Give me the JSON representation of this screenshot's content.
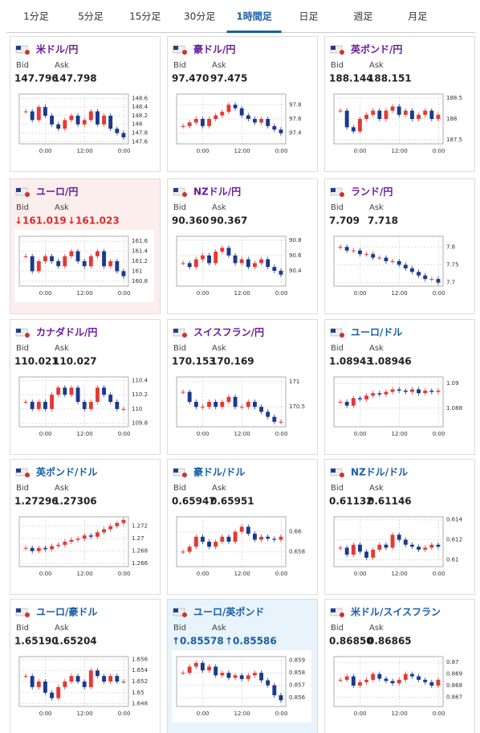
{
  "tabs": {
    "items": [
      "1分足",
      "5分足",
      "15分足",
      "30分足",
      "1時間足",
      "日足",
      "週足",
      "月足"
    ],
    "active": 4
  },
  "bid_label": "Bid",
  "ask_label": "Ask",
  "xticks": [
    "0:00",
    "12:00",
    "0:00"
  ],
  "cards": [
    {
      "title": "米ドル/円",
      "title_color": "#6a1b9a",
      "bid": "147.796",
      "ask": "147.798",
      "highlight": null,
      "ylim": [
        147.55,
        148.7
      ],
      "yticks": [
        147.6,
        147.8,
        148,
        148.2,
        148.4,
        148.6
      ],
      "closes": [
        148.3,
        148.1,
        148.4,
        148.2,
        148.0,
        147.9,
        148.1,
        148.2,
        148.0,
        148.1,
        148.3,
        148.0,
        148.2,
        147.9,
        147.8,
        147.7
      ]
    },
    {
      "title": "豪ドル/円",
      "title_color": "#6a1b9a",
      "bid": "97.470",
      "ask": "97.475",
      "highlight": null,
      "ylim": [
        97.25,
        97.95
      ],
      "yticks": [
        97.4,
        97.6,
        97.8
      ],
      "closes": [
        97.5,
        97.55,
        97.6,
        97.5,
        97.6,
        97.65,
        97.7,
        97.8,
        97.75,
        97.65,
        97.6,
        97.55,
        97.6,
        97.5,
        97.45,
        97.4
      ]
    },
    {
      "title": "英ポンド/円",
      "title_color": "#6a1b9a",
      "bid": "188.144",
      "ask": "188.151",
      "highlight": null,
      "ylim": [
        187.4,
        188.6
      ],
      "yticks": [
        187.5,
        188,
        188.5
      ],
      "closes": [
        188.2,
        187.8,
        187.7,
        188.0,
        188.1,
        188.2,
        188.0,
        188.2,
        188.3,
        188.1,
        188.2,
        188.0,
        188.1,
        188.2,
        188.0,
        188.1
      ]
    },
    {
      "title": "ユーロ/円",
      "title_color": "#6a1b9a",
      "bid": "↓161.019",
      "ask": "↓161.023",
      "highlight": "down",
      "ylim": [
        160.7,
        161.7
      ],
      "yticks": [
        160.8,
        161,
        161.2,
        161.4,
        161.6
      ],
      "closes": [
        161.3,
        161.0,
        161.2,
        161.3,
        161.2,
        161.1,
        161.3,
        161.4,
        161.2,
        161.1,
        161.3,
        161.4,
        161.1,
        161.2,
        161.0,
        160.9
      ]
    },
    {
      "title": "NZドル/円",
      "title_color": "#6a1b9a",
      "bid": "90.360",
      "ask": "90.367",
      "highlight": null,
      "ylim": [
        90.2,
        90.85
      ],
      "yticks": [
        90.4,
        90.6,
        90.8
      ],
      "closes": [
        90.5,
        90.45,
        90.55,
        90.6,
        90.5,
        90.65,
        90.7,
        90.6,
        90.5,
        90.55,
        90.45,
        90.5,
        90.55,
        90.45,
        90.4,
        90.35
      ]
    },
    {
      "title": "ランド/円",
      "title_color": "#6a1b9a",
      "bid": "7.709",
      "ask": "7.718",
      "highlight": null,
      "ylim": [
        7.69,
        7.83
      ],
      "yticks": [
        7.7,
        7.75,
        7.8
      ],
      "closes": [
        7.8,
        7.79,
        7.79,
        7.78,
        7.78,
        7.77,
        7.77,
        7.76,
        7.76,
        7.75,
        7.74,
        7.73,
        7.72,
        7.71,
        7.71,
        7.7
      ]
    },
    {
      "title": "カナダドル/円",
      "title_color": "#6a1b9a",
      "bid": "110.021",
      "ask": "110.027",
      "highlight": null,
      "ylim": [
        109.75,
        110.45
      ],
      "yticks": [
        109.8,
        110,
        110.2,
        110.4
      ],
      "closes": [
        110.1,
        110.0,
        110.1,
        110.0,
        110.2,
        110.3,
        110.2,
        110.3,
        110.1,
        110.0,
        110.1,
        110.3,
        110.2,
        110.1,
        110.0,
        110.0
      ]
    },
    {
      "title": "スイスフラン/円",
      "title_color": "#6a1b9a",
      "bid": "170.153",
      "ask": "170.169",
      "highlight": null,
      "ylim": [
        170.1,
        171.1
      ],
      "yticks": [
        170.5,
        171
      ],
      "closes": [
        170.8,
        170.6,
        170.5,
        170.5,
        170.6,
        170.5,
        170.6,
        170.7,
        170.5,
        170.5,
        170.6,
        170.5,
        170.4,
        170.3,
        170.2,
        170.2
      ]
    },
    {
      "title": "ユーロ/ドル",
      "title_color": "#1a5ea8",
      "bid": "1.08943",
      "ask": "1.08946",
      "highlight": null,
      "ylim": [
        1.0865,
        1.0905
      ],
      "yticks": [
        1.088,
        1.09
      ],
      "closes": [
        1.0885,
        1.0882,
        1.0888,
        1.0887,
        1.089,
        1.0892,
        1.0891,
        1.0893,
        1.0895,
        1.0894,
        1.0893,
        1.0895,
        1.0892,
        1.0894,
        1.0893,
        1.0894
      ]
    },
    {
      "title": "英ポンド/ドル",
      "title_color": "#1a5ea8",
      "bid": "1.27296",
      "ask": "1.27306",
      "highlight": null,
      "ylim": [
        1.2655,
        1.2735
      ],
      "yticks": [
        1.266,
        1.268,
        1.27,
        1.272
      ],
      "closes": [
        1.2685,
        1.268,
        1.2685,
        1.2683,
        1.2688,
        1.269,
        1.2695,
        1.2698,
        1.27,
        1.2705,
        1.2703,
        1.271,
        1.2715,
        1.272,
        1.2725,
        1.273
      ]
    },
    {
      "title": "豪ドル/ドル",
      "title_color": "#1a5ea8",
      "bid": "0.65947",
      "ask": "0.65951",
      "highlight": null,
      "ylim": [
        0.6565,
        0.6615
      ],
      "yticks": [
        0.658,
        0.66
      ],
      "closes": [
        0.658,
        0.6585,
        0.6595,
        0.659,
        0.6585,
        0.659,
        0.6595,
        0.659,
        0.66,
        0.6605,
        0.6598,
        0.6592,
        0.6595,
        0.6593,
        0.6592,
        0.6595
      ]
    },
    {
      "title": "NZドル/ドル",
      "title_color": "#1a5ea8",
      "bid": "0.61132",
      "ask": "0.61146",
      "highlight": null,
      "ylim": [
        0.6093,
        0.6143
      ],
      "yticks": [
        0.61,
        0.612,
        0.614
      ],
      "closes": [
        0.6112,
        0.6105,
        0.6115,
        0.6108,
        0.6102,
        0.611,
        0.6115,
        0.6112,
        0.6125,
        0.612,
        0.6115,
        0.6113,
        0.611,
        0.6112,
        0.6115,
        0.6113
      ]
    },
    {
      "title": "ユーロ/豪ドル",
      "title_color": "#1a5ea8",
      "bid": "1.65190",
      "ask": "1.65204",
      "highlight": null,
      "ylim": [
        1.6475,
        1.6565
      ],
      "yticks": [
        1.648,
        1.65,
        1.652,
        1.654,
        1.656
      ],
      "closes": [
        1.653,
        1.651,
        1.652,
        1.65,
        1.649,
        1.651,
        1.652,
        1.653,
        1.652,
        1.651,
        1.654,
        1.653,
        1.652,
        1.653,
        1.652,
        1.652
      ]
    },
    {
      "title": "ユーロ/英ポンド",
      "title_color": "#1a5ea8",
      "bid": "↑0.85578",
      "ask": "↑0.85586",
      "highlight": "up",
      "ylim": [
        0.8553,
        0.8593
      ],
      "yticks": [
        0.856,
        0.857,
        0.858,
        0.859
      ],
      "closes": [
        0.858,
        0.8585,
        0.8588,
        0.8582,
        0.8585,
        0.8578,
        0.858,
        0.8576,
        0.8578,
        0.8575,
        0.8578,
        0.858,
        0.8574,
        0.857,
        0.8562,
        0.8558
      ]
    },
    {
      "title": "米ドル/スイスフラン",
      "title_color": "#1a5ea8",
      "bid": "0.86850",
      "ask": "0.86865",
      "highlight": null,
      "ylim": [
        0.8662,
        0.8705
      ],
      "yticks": [
        0.867,
        0.868,
        0.869,
        0.87
      ],
      "closes": [
        0.8685,
        0.8688,
        0.868,
        0.8683,
        0.8685,
        0.869,
        0.8686,
        0.8684,
        0.8682,
        0.8685,
        0.869,
        0.8688,
        0.8685,
        0.8683,
        0.868,
        0.8685
      ]
    }
  ]
}
